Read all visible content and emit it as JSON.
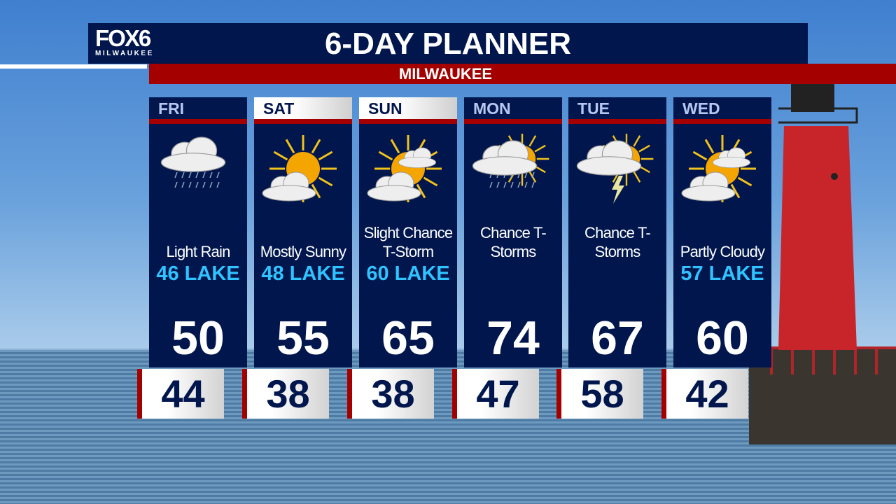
{
  "header": {
    "logo_text": "FOX6",
    "logo_city": "MILWAUKEE",
    "title": "6-DAY PLANNER",
    "location": "MILWAUKEE"
  },
  "colors": {
    "navy": "#00164d",
    "red": "#a50000",
    "lake_temp": "#2fc3ff"
  },
  "days": [
    {
      "day": "FRI",
      "icon": "rain-cloud-icon",
      "condition": "Light Rain",
      "lake": "46 LAKE",
      "high": "50",
      "low": "44"
    },
    {
      "day": "SAT",
      "icon": "mostly-sunny-icon",
      "condition": "Mostly Sunny",
      "lake": "48 LAKE",
      "high": "55",
      "low": "38"
    },
    {
      "day": "SUN",
      "icon": "partly-sunny-icon",
      "condition": "Slight Chance T-Storm",
      "lake": "60 LAKE",
      "high": "65",
      "low": "38"
    },
    {
      "day": "MON",
      "icon": "sun-rain-cloud-icon",
      "condition": "Chance T-Storms",
      "lake": "",
      "high": "74",
      "low": "47"
    },
    {
      "day": "TUE",
      "icon": "thunderstorm-icon",
      "condition": "Chance T-Storms",
      "lake": "",
      "high": "67",
      "low": "58"
    },
    {
      "day": "WED",
      "icon": "partly-cloudy-icon",
      "condition": "Partly Cloudy",
      "lake": "57 LAKE",
      "high": "60",
      "low": "42"
    }
  ]
}
